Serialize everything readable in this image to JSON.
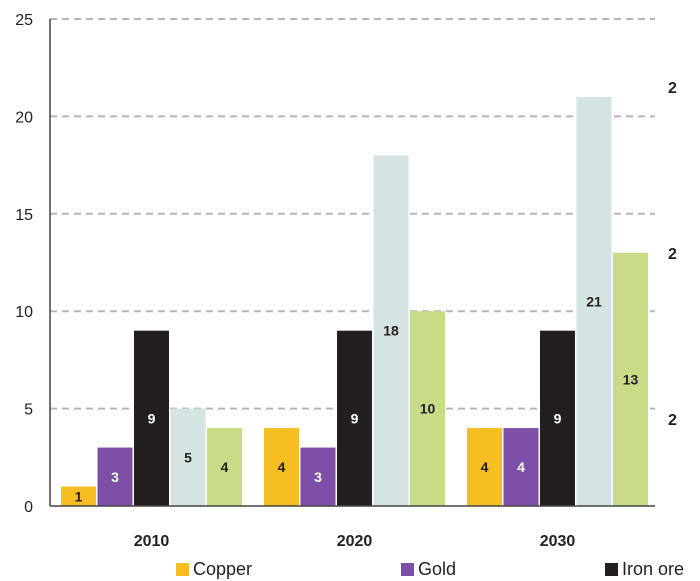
{
  "chart_data": {
    "type": "bar",
    "categories": [
      "2010",
      "2020",
      "2030"
    ],
    "series": [
      {
        "name": "Copper",
        "color": "#F6BE22",
        "values": [
          1,
          4,
          4
        ]
      },
      {
        "name": "Gold",
        "color": "#7E4FA6",
        "values": [
          3,
          3,
          4
        ]
      },
      {
        "name": "Iron ore",
        "color": "#231F20",
        "values": [
          9,
          9,
          9
        ]
      },
      {
        "name": "",
        "color": "#D5E3E3",
        "values": [
          5,
          18,
          21
        ]
      },
      {
        "name": "",
        "color": "#C8DB87",
        "values": [
          4,
          10,
          13
        ]
      }
    ],
    "label_colors": [
      "#231F20",
      "#FFFFFF",
      "#FFFFFF",
      "#231F20",
      "#231F20"
    ],
    "ylim": [
      0,
      25
    ],
    "yticks": [
      "0",
      "5",
      "10",
      "15",
      "20",
      "25"
    ],
    "grid": true,
    "legend_position": "bottom"
  },
  "cutoff_labels": [
    "2",
    "2",
    "2"
  ]
}
